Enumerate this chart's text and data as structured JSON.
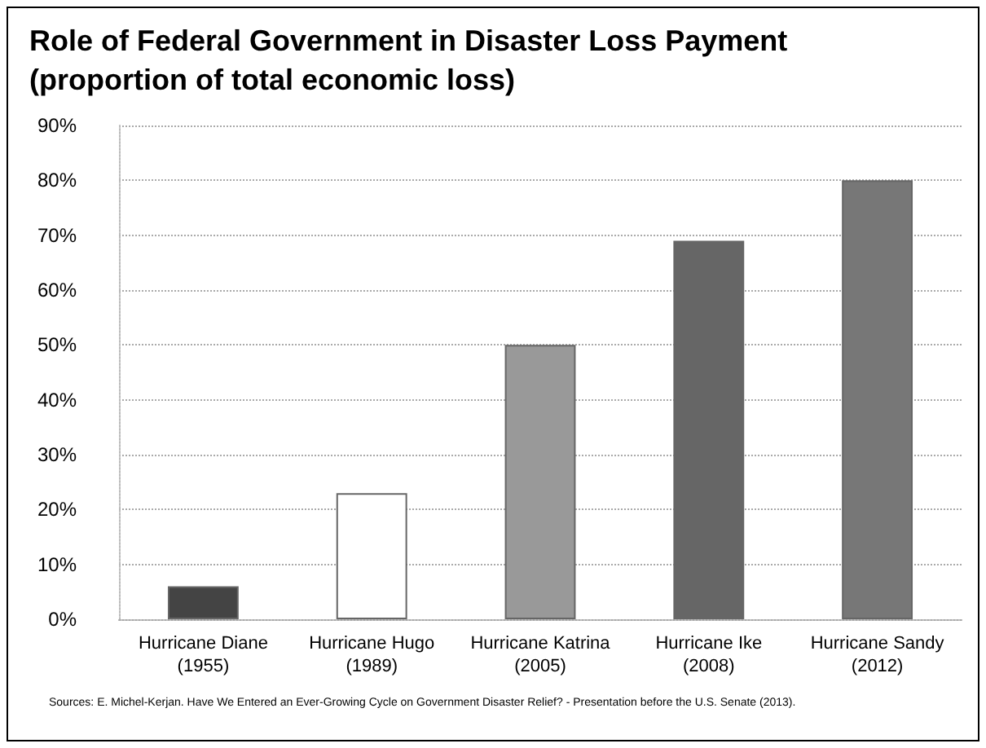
{
  "chart_data": {
    "type": "bar",
    "title": "Role of Federal Government in Disaster Loss Payment",
    "subtitle": "(proportion of total economic loss)",
    "categories": [
      "Hurricane Diane\n(1955)",
      "Hurricane Hugo\n(1989)",
      "Hurricane Katrina\n(2005)",
      "Hurricane Ike\n(2008)",
      "Hurricane Sandy\n(2012)"
    ],
    "values": [
      6,
      23,
      50,
      69,
      80
    ],
    "colors": [
      "#444444",
      "#ffffff",
      "#999999",
      "#666666",
      "#777777"
    ],
    "ylim": [
      0,
      90
    ],
    "yticks": [
      {
        "value": 0,
        "label": "0%"
      },
      {
        "value": 10,
        "label": "10%"
      },
      {
        "value": 20,
        "label": "20%"
      },
      {
        "value": 30,
        "label": "30%"
      },
      {
        "value": 40,
        "label": "40%"
      },
      {
        "value": 50,
        "label": "50%"
      },
      {
        "value": 60,
        "label": "60%"
      },
      {
        "value": 70,
        "label": "70%"
      },
      {
        "value": 80,
        "label": "80%"
      },
      {
        "value": 90,
        "label": "90%"
      }
    ],
    "grid": "y",
    "annotations": [
      "Sources: E. Michel-Kerjan. Have We Entered an Ever-Growing Cycle on Government Disaster Relief? - Presentation before the U.S. Senate (2013)."
    ]
  }
}
